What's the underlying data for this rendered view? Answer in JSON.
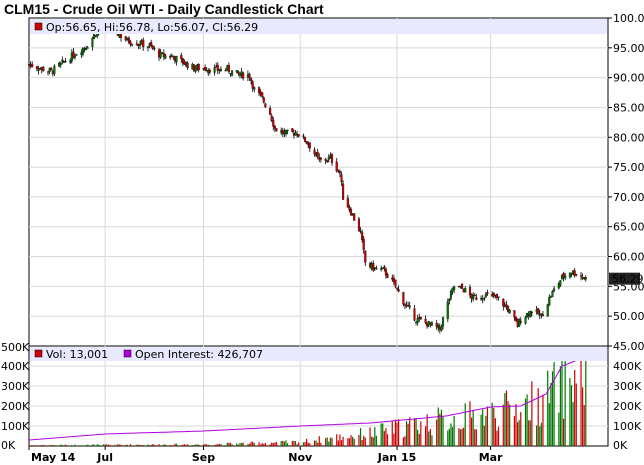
{
  "chart_data": {
    "type": "candlestick",
    "title": "CLM15 - Crude Oil WTI - Daily Candlestick Chart",
    "price_panel": {
      "legend": "Op:56.65, Hi:56.78, Lo:56.07, Cl:56.29",
      "ylim": [
        45,
        100
      ],
      "y_ticks": [
        "100.00",
        "95.00",
        "90.00",
        "85.00",
        "80.00",
        "75.00",
        "70.00",
        "65.00",
        "60.00",
        "55.00",
        "50.00",
        "45.00"
      ],
      "last_value_label": "56.29",
      "close_series": [
        {
          "x": "2014-05-14",
          "close": 92.2
        },
        {
          "x": "2014-05-28",
          "close": 91.0
        },
        {
          "x": "2014-06-10",
          "close": 93.6
        },
        {
          "x": "2014-06-20",
          "close": 95.5
        },
        {
          "x": "2014-06-25",
          "close": 97.5
        },
        {
          "x": "2014-07-01",
          "close": 98.2
        },
        {
          "x": "2014-07-08",
          "close": 97.6
        },
        {
          "x": "2014-07-15",
          "close": 96.2
        },
        {
          "x": "2014-07-22",
          "close": 95.8
        },
        {
          "x": "2014-07-29",
          "close": 95.3
        },
        {
          "x": "2014-08-05",
          "close": 93.7
        },
        {
          "x": "2014-08-12",
          "close": 93.6
        },
        {
          "x": "2014-08-19",
          "close": 92.6
        },
        {
          "x": "2014-08-26",
          "close": 91.6
        },
        {
          "x": "2014-09-02",
          "close": 91.6
        },
        {
          "x": "2014-09-09",
          "close": 91.3
        },
        {
          "x": "2014-09-16",
          "close": 91.4
        },
        {
          "x": "2014-09-23",
          "close": 90.5
        },
        {
          "x": "2014-09-30",
          "close": 90.4
        },
        {
          "x": "2014-10-03",
          "close": 88.0
        },
        {
          "x": "2014-10-08",
          "close": 86.5
        },
        {
          "x": "2014-10-13",
          "close": 84.0
        },
        {
          "x": "2014-10-16",
          "close": 81.5
        },
        {
          "x": "2014-10-22",
          "close": 80.6
        },
        {
          "x": "2014-10-30",
          "close": 80.8
        },
        {
          "x": "2014-11-06",
          "close": 79.0
        },
        {
          "x": "2014-11-13",
          "close": 76.0
        },
        {
          "x": "2014-11-20",
          "close": 76.5
        },
        {
          "x": "2014-11-26",
          "close": 74.0
        },
        {
          "x": "2014-11-28",
          "close": 70.0
        },
        {
          "x": "2014-12-03",
          "close": 67.5
        },
        {
          "x": "2014-12-09",
          "close": 64.0
        },
        {
          "x": "2014-12-12",
          "close": 59.0
        },
        {
          "x": "2014-12-18",
          "close": 58.0
        },
        {
          "x": "2014-12-24",
          "close": 57.6
        },
        {
          "x": "2014-12-31",
          "close": 55.0
        },
        {
          "x": "2015-01-06",
          "close": 52.0
        },
        {
          "x": "2015-01-13",
          "close": 49.5
        },
        {
          "x": "2015-01-20",
          "close": 48.8
        },
        {
          "x": "2015-01-28",
          "close": 47.8
        },
        {
          "x": "2015-02-03",
          "close": 53.0
        },
        {
          "x": "2015-02-06",
          "close": 55.0
        },
        {
          "x": "2015-02-12",
          "close": 54.5
        },
        {
          "x": "2015-02-18",
          "close": 53.0
        },
        {
          "x": "2015-02-25",
          "close": 53.5
        },
        {
          "x": "2015-03-04",
          "close": 53.2
        },
        {
          "x": "2015-03-11",
          "close": 51.5
        },
        {
          "x": "2015-03-18",
          "close": 48.5
        },
        {
          "x": "2015-03-20",
          "close": 49.5
        },
        {
          "x": "2015-03-27",
          "close": 51.0
        },
        {
          "x": "2015-04-02",
          "close": 50.0
        },
        {
          "x": "2015-04-08",
          "close": 53.5
        },
        {
          "x": "2015-04-15",
          "close": 56.5
        },
        {
          "x": "2015-04-20",
          "close": 57.5
        },
        {
          "x": "2015-04-24",
          "close": 57.2
        },
        {
          "x": "2015-04-30",
          "close": 56.3
        }
      ]
    },
    "volume_panel": {
      "legend": [
        "Vol: 13,001",
        "Open Interest: 426,707"
      ],
      "ylim": [
        0,
        500000
      ],
      "y_ticks": [
        "500K",
        "400K",
        "300K",
        "200K",
        "100K",
        "0K"
      ],
      "open_interest": [
        {
          "x": "2014-05-14",
          "value": 30000
        },
        {
          "x": "2014-07-01",
          "value": 60000
        },
        {
          "x": "2014-09-01",
          "value": 75000
        },
        {
          "x": "2014-11-01",
          "value": 100000
        },
        {
          "x": "2014-12-15",
          "value": 115000
        },
        {
          "x": "2015-02-01",
          "value": 150000
        },
        {
          "x": "2015-03-01",
          "value": 195000
        },
        {
          "x": "2015-03-20",
          "value": 200000
        },
        {
          "x": "2015-04-05",
          "value": 260000
        },
        {
          "x": "2015-04-15",
          "value": 400000
        },
        {
          "x": "2015-04-25",
          "value": 430000
        },
        {
          "x": "2015-04-30",
          "value": 426707
        }
      ],
      "volume_profile": [
        {
          "x": "2014-05-14",
          "value": 5000
        },
        {
          "x": "2014-09-01",
          "value": 10000
        },
        {
          "x": "2014-11-01",
          "value": 25000
        },
        {
          "x": "2014-12-15",
          "value": 80000
        },
        {
          "x": "2015-01-15",
          "value": 140000
        },
        {
          "x": "2015-03-01",
          "value": 200000
        },
        {
          "x": "2015-04-01",
          "value": 280000
        },
        {
          "x": "2015-04-20",
          "value": 420000
        }
      ]
    },
    "x_ticks": [
      {
        "label": "May 14",
        "x": "2014-05-14"
      },
      {
        "label": "Jul",
        "x": "2014-07-01"
      },
      {
        "label": "Sep",
        "x": "2014-09-01"
      },
      {
        "label": "Nov",
        "x": "2014-11-01"
      },
      {
        "label": "Jan 15",
        "x": "2015-01-01"
      },
      {
        "label": "Mar",
        "x": "2015-03-01"
      }
    ],
    "x_range": [
      "2014-05-14",
      "2015-05-14"
    ],
    "colors": {
      "up": "#007700",
      "down": "#cc0000",
      "open_interest": "#b000e0",
      "legend_bg": "#e8e8ff"
    },
    "grid": true
  }
}
